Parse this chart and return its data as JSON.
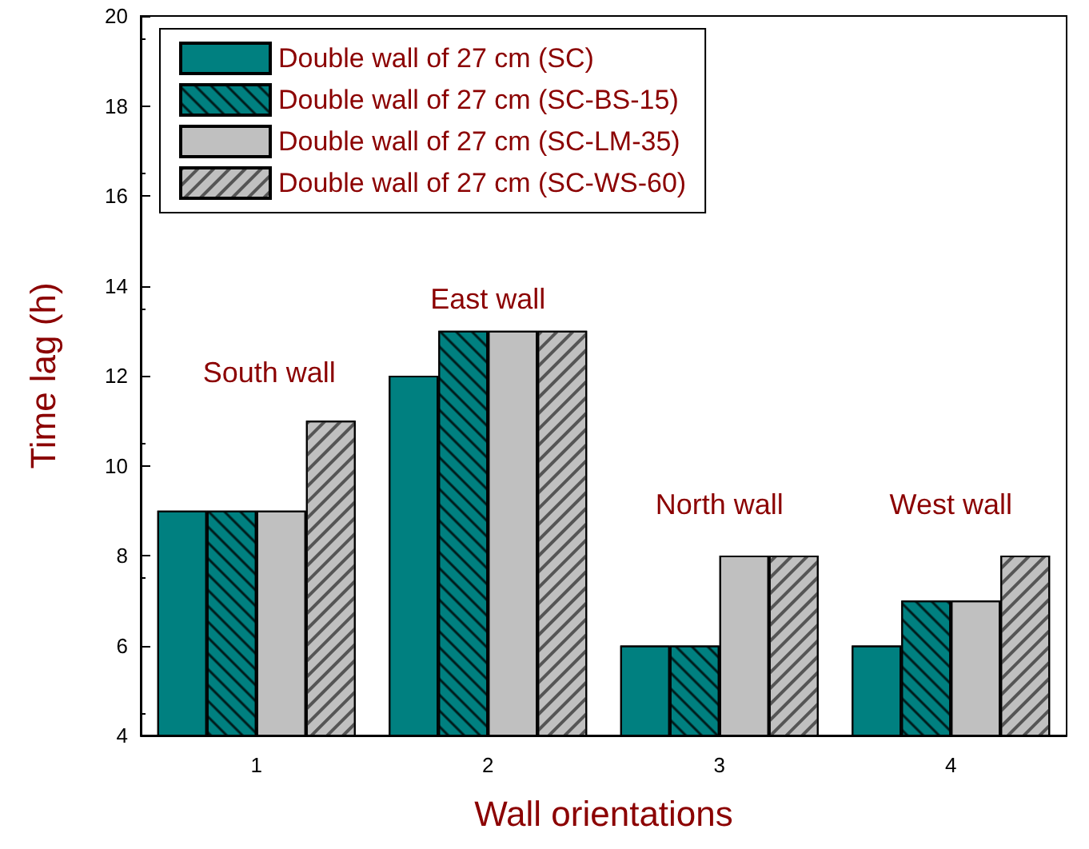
{
  "chart_data": {
    "type": "bar",
    "xlabel": "Wall orientations",
    "ylabel": "Time lag (h)",
    "categories": [
      "1",
      "2",
      "3",
      "4"
    ],
    "series": [
      {
        "name": "Double wall of 27 cm (SC)",
        "color": "#008080",
        "values": [
          9,
          12,
          6,
          6
        ]
      },
      {
        "name": "Double wall of 27 cm (SC-BS-15)",
        "color": "#008080",
        "values": [
          9,
          13,
          6,
          7
        ]
      },
      {
        "name": "Double wall of 27 cm (SC-LM-35)",
        "color": "#c0c0c0",
        "values": [
          9,
          13,
          8,
          7
        ]
      },
      {
        "name": "Double wall of 27 cm (SC-WS-60)",
        "color": "#c0c0c0",
        "values": [
          11,
          13,
          8,
          8
        ]
      }
    ],
    "ylim": [
      4,
      20
    ],
    "yticks": [
      4,
      6,
      8,
      10,
      12,
      14,
      16,
      18,
      20
    ],
    "grid": false,
    "legend": "top left",
    "annotations": [
      "South wall",
      "East wall",
      "North wall",
      "West wall"
    ]
  }
}
